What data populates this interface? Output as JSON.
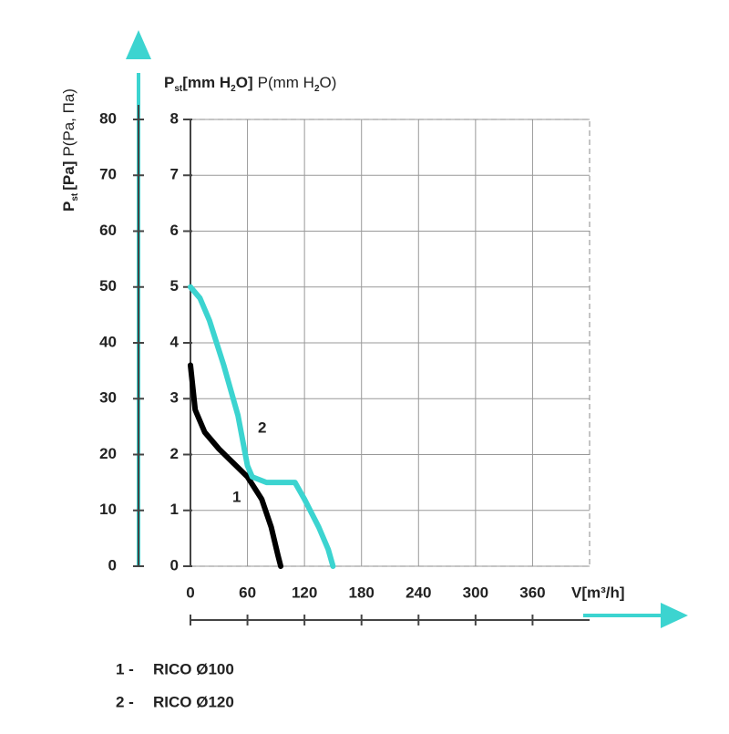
{
  "chart_data": {
    "type": "line",
    "y_label_parts": [
      "P",
      "st",
      "[Pa]",
      "P(Pa, Па)"
    ],
    "y2_label_parts": [
      "P",
      "st",
      "[mm H",
      "2",
      "O]",
      "P(mm H",
      "2",
      "O)"
    ],
    "x_label": "V[m³/h]",
    "xlim": [
      0,
      420
    ],
    "xticks": [
      0,
      60,
      120,
      180,
      240,
      300,
      360
    ],
    "ylim": [
      0,
      80
    ],
    "yticks": [
      0,
      10,
      20,
      30,
      40,
      50,
      60,
      70,
      80
    ],
    "y2lim": [
      0,
      8
    ],
    "y2ticks": [
      0,
      1,
      2,
      3,
      4,
      5,
      6,
      7,
      8
    ],
    "grid": true,
    "series": [
      {
        "name": "1",
        "color": "#000000",
        "x": [
          0,
          5,
          15,
          30,
          45,
          60,
          75,
          85,
          92,
          95
        ],
        "values": [
          36,
          28,
          24,
          21,
          18.5,
          16,
          12,
          7,
          2,
          0
        ]
      },
      {
        "name": "2",
        "color": "#3cd4d0",
        "x": [
          0,
          10,
          20,
          35,
          50,
          60,
          65,
          80,
          100,
          110,
          120,
          135,
          145,
          150
        ],
        "values": [
          50,
          48,
          44,
          36,
          27,
          18,
          16,
          15,
          15,
          15,
          12,
          7,
          3,
          0
        ]
      }
    ],
    "legend": [
      {
        "number": "1 -",
        "label": "RICO Ø100"
      },
      {
        "number": "2 -",
        "label": "RICO Ø120"
      }
    ]
  }
}
